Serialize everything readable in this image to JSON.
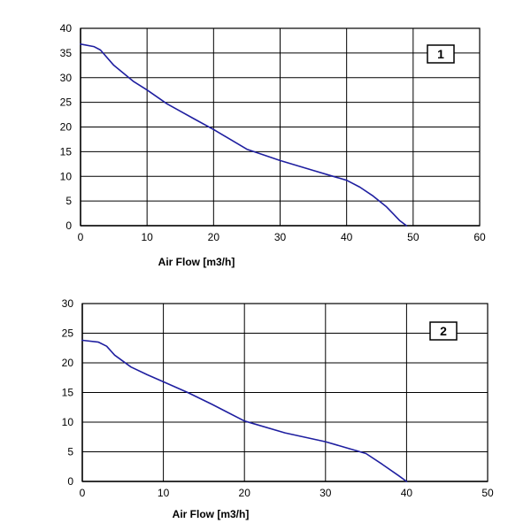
{
  "chart_data": [
    {
      "type": "line",
      "badge": "1",
      "xlabel": "Air Flow [m3/h]",
      "ylabel": "",
      "xlim": [
        0,
        60
      ],
      "ylim": [
        0,
        40
      ],
      "xticks": [
        0,
        10,
        20,
        30,
        40,
        50,
        60
      ],
      "yticks": [
        0,
        5,
        10,
        15,
        20,
        25,
        30,
        35,
        40
      ],
      "grid": true,
      "line_color": "#1f1fa0",
      "series": [
        {
          "x": [
            0,
            2,
            3,
            5,
            8,
            10,
            13,
            17,
            20,
            25,
            30,
            35,
            38,
            40,
            42,
            44,
            46,
            47,
            48,
            49
          ],
          "y": [
            36.8,
            36.3,
            35.6,
            32.5,
            29.2,
            27.5,
            24.7,
            21.7,
            19.5,
            15.5,
            13.2,
            11.2,
            10.0,
            9.2,
            7.8,
            6.0,
            3.8,
            2.4,
            1.0,
            0
          ]
        }
      ]
    },
    {
      "type": "line",
      "badge": "2",
      "xlabel": "Air Flow [m3/h]",
      "ylabel": "",
      "xlim": [
        0,
        50
      ],
      "ylim": [
        0,
        30
      ],
      "xticks": [
        0,
        10,
        20,
        30,
        40,
        50
      ],
      "yticks": [
        0,
        5,
        10,
        15,
        20,
        25,
        30
      ],
      "grid": true,
      "line_color": "#1f1fa0",
      "series": [
        {
          "x": [
            0,
            2,
            3,
            4,
            6,
            8,
            10,
            13,
            16,
            20,
            25,
            30,
            33,
            35,
            37,
            39,
            40
          ],
          "y": [
            23.8,
            23.5,
            22.8,
            21.3,
            19.3,
            18.0,
            16.8,
            15.0,
            13.0,
            10.2,
            8.2,
            6.7,
            5.5,
            4.7,
            2.9,
            1.0,
            0
          ]
        }
      ]
    }
  ]
}
